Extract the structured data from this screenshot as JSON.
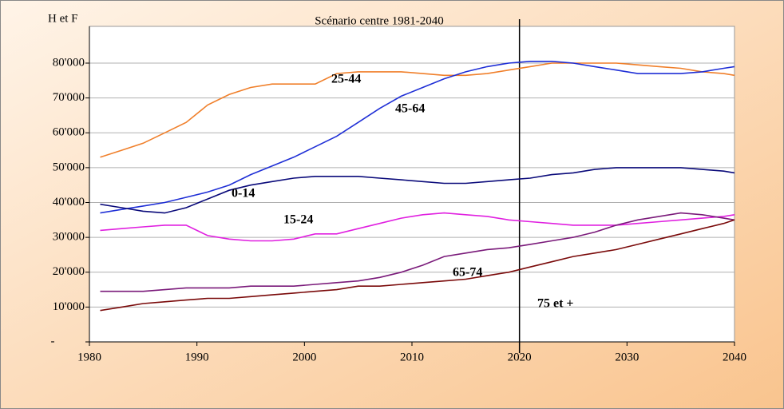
{
  "chart_data": {
    "type": "line",
    "title": "Scénario centre 1981-2040",
    "y_label": "H et F",
    "x": [
      1981,
      1983,
      1985,
      1987,
      1989,
      1991,
      1993,
      1995,
      1997,
      1999,
      2001,
      2003,
      2005,
      2007,
      2009,
      2011,
      2013,
      2015,
      2017,
      2019,
      2021,
      2023,
      2025,
      2027,
      2029,
      2031,
      2033,
      2035,
      2037,
      2039,
      2040
    ],
    "series": [
      {
        "name": "25-44",
        "color": "#f07f2a",
        "values": [
          53000,
          55000,
          57000,
          60000,
          63000,
          68000,
          71000,
          73000,
          74000,
          74000,
          74000,
          77000,
          77500,
          77500,
          77500,
          77000,
          76500,
          76500,
          77000,
          78000,
          79000,
          80000,
          80000,
          80000,
          80000,
          79500,
          79000,
          78500,
          77500,
          77000,
          76500
        ]
      },
      {
        "name": "45-64",
        "color": "#1f2fd6",
        "values": [
          37000,
          38000,
          39000,
          40000,
          41500,
          43000,
          45000,
          48000,
          50500,
          53000,
          56000,
          59000,
          63000,
          67000,
          70500,
          73000,
          75500,
          77500,
          79000,
          80000,
          80500,
          80500,
          80000,
          79000,
          78000,
          77000,
          77000,
          77000,
          77500,
          78500,
          79000
        ]
      },
      {
        "name": "0-14",
        "color": "#0a0a7a",
        "values": [
          39500,
          38500,
          37500,
          37000,
          38500,
          41000,
          43500,
          45000,
          46000,
          47000,
          47500,
          47500,
          47500,
          47000,
          46500,
          46000,
          45500,
          45500,
          46000,
          46500,
          47000,
          48000,
          48500,
          49500,
          50000,
          50000,
          50000,
          50000,
          49500,
          49000,
          48500
        ]
      },
      {
        "name": "15-24",
        "color": "#e020e0",
        "values": [
          32000,
          32500,
          33000,
          33500,
          33500,
          30500,
          29500,
          29000,
          29000,
          29500,
          31000,
          31000,
          32500,
          34000,
          35500,
          36500,
          37000,
          36500,
          36000,
          35000,
          34500,
          34000,
          33500,
          33500,
          33500,
          34000,
          34500,
          35000,
          35500,
          36000,
          36500
        ]
      },
      {
        "name": "65-74",
        "color": "#7a1a7a",
        "values": [
          14500,
          14500,
          14500,
          15000,
          15500,
          15500,
          15500,
          16000,
          16000,
          16000,
          16500,
          17000,
          17500,
          18500,
          20000,
          22000,
          24500,
          25500,
          26500,
          27000,
          28000,
          29000,
          30000,
          31500,
          33500,
          35000,
          36000,
          37000,
          36500,
          35500,
          35000
        ]
      },
      {
        "name": "75 et +",
        "color": "#7a0a0a",
        "values": [
          9000,
          10000,
          11000,
          11500,
          12000,
          12500,
          12500,
          13000,
          13500,
          14000,
          14500,
          15000,
          16000,
          16000,
          16500,
          17000,
          17500,
          18000,
          19000,
          20000,
          21500,
          23000,
          24500,
          25500,
          26500,
          28000,
          29500,
          31000,
          32500,
          34000,
          35000
        ]
      }
    ],
    "xlim": [
      1980,
      2040
    ],
    "xticks": [
      1980,
      1990,
      2000,
      2010,
      2020,
      2030,
      2040
    ],
    "ylim": [
      0,
      80000
    ],
    "yticks": [
      {
        "value": 0,
        "label": "-"
      },
      {
        "value": 10000,
        "label": "10'000"
      },
      {
        "value": 20000,
        "label": "20'000"
      },
      {
        "value": 30000,
        "label": "30'000"
      },
      {
        "value": 40000,
        "label": "40'000"
      },
      {
        "value": 50000,
        "label": "50'000"
      },
      {
        "value": 60000,
        "label": "60'000"
      },
      {
        "value": 70000,
        "label": "70'000"
      },
      {
        "value": 80000,
        "label": "80'000"
      }
    ],
    "grid": true,
    "reference_line_x": 2020
  }
}
